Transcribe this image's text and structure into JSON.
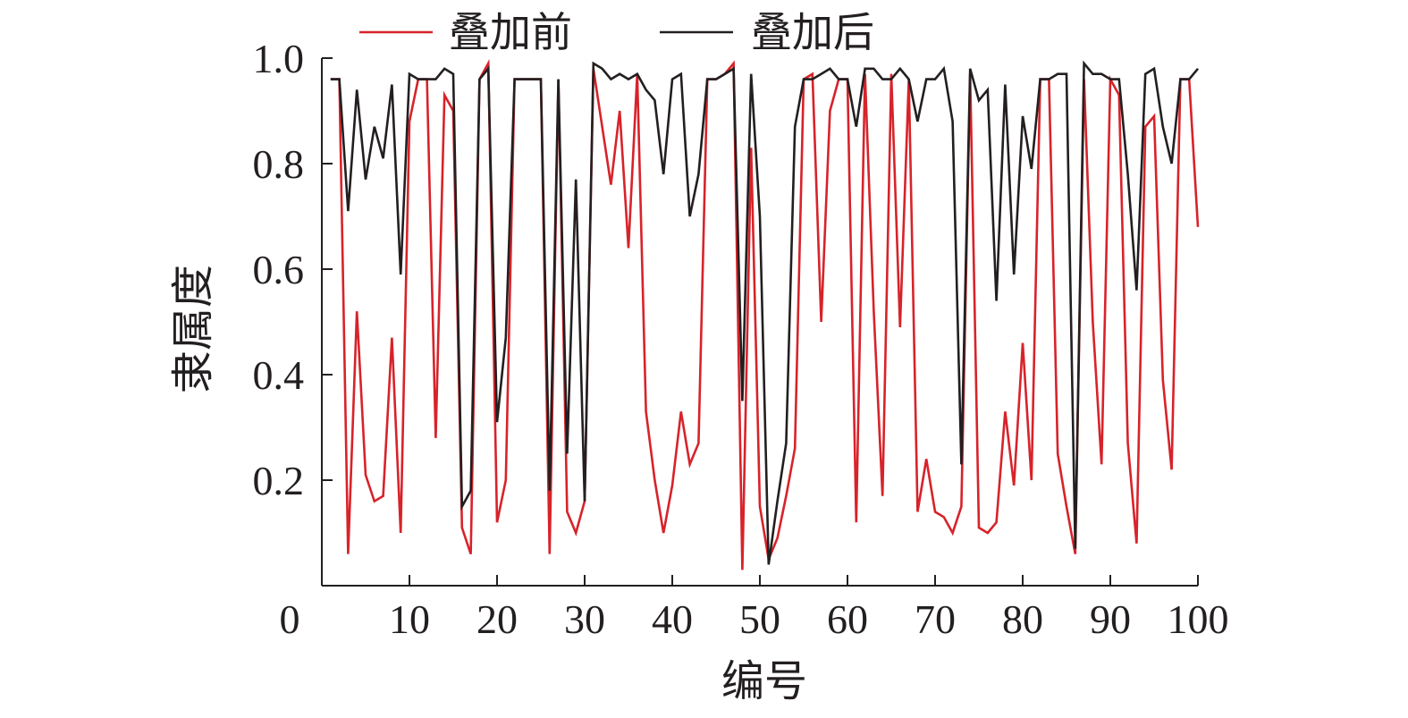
{
  "chart_data": {
    "type": "line",
    "title": "",
    "xlabel": "编号",
    "ylabel": "隶属度",
    "xlim": [
      0,
      100
    ],
    "ylim": [
      0,
      1.0
    ],
    "x_ticks": [
      {
        "value": 0,
        "label": "0"
      },
      {
        "value": 10,
        "label": "10"
      },
      {
        "value": 20,
        "label": "20"
      },
      {
        "value": 30,
        "label": "30"
      },
      {
        "value": 40,
        "label": "40"
      },
      {
        "value": 50,
        "label": "50"
      },
      {
        "value": 60,
        "label": "60"
      },
      {
        "value": 70,
        "label": "70"
      },
      {
        "value": 80,
        "label": "80"
      },
      {
        "value": 90,
        "label": "90"
      },
      {
        "value": 100,
        "label": "100"
      }
    ],
    "y_ticks": [
      {
        "value": 0.2,
        "label": "0.2"
      },
      {
        "value": 0.4,
        "label": "0.4"
      },
      {
        "value": 0.6,
        "label": "0.6"
      },
      {
        "value": 0.8,
        "label": "0.8"
      },
      {
        "value": 1.0,
        "label": "1.0"
      }
    ],
    "grid": false,
    "legend_position": "top",
    "x": [
      1,
      2,
      3,
      4,
      5,
      6,
      7,
      8,
      9,
      10,
      11,
      12,
      13,
      14,
      15,
      16,
      17,
      18,
      19,
      20,
      21,
      22,
      23,
      24,
      25,
      26,
      27,
      28,
      29,
      30,
      31,
      32,
      33,
      34,
      35,
      36,
      37,
      38,
      39,
      40,
      41,
      42,
      43,
      44,
      45,
      46,
      47,
      48,
      49,
      50,
      51,
      52,
      53,
      54,
      55,
      56,
      57,
      58,
      59,
      60,
      61,
      62,
      63,
      64,
      65,
      66,
      67,
      68,
      69,
      70,
      71,
      72,
      73,
      74,
      75,
      76,
      77,
      78,
      79,
      80,
      81,
      82,
      83,
      84,
      85,
      86,
      87,
      88,
      89,
      90,
      91,
      92,
      93,
      94,
      95,
      96,
      97,
      98,
      99,
      100
    ],
    "series": [
      {
        "name": "叠加前",
        "color": "#d7232a",
        "values": [
          0.96,
          0.96,
          0.06,
          0.52,
          0.21,
          0.16,
          0.17,
          0.47,
          0.1,
          0.88,
          0.96,
          0.96,
          0.28,
          0.93,
          0.9,
          0.11,
          0.06,
          0.96,
          0.99,
          0.12,
          0.2,
          0.96,
          0.96,
          0.96,
          0.96,
          0.06,
          0.96,
          0.14,
          0.1,
          0.16,
          0.98,
          0.87,
          0.76,
          0.9,
          0.64,
          0.97,
          0.33,
          0.2,
          0.1,
          0.19,
          0.33,
          0.23,
          0.27,
          0.96,
          0.96,
          0.97,
          0.99,
          0.03,
          0.83,
          0.15,
          0.05,
          0.09,
          0.17,
          0.26,
          0.96,
          0.97,
          0.5,
          0.9,
          0.96,
          0.96,
          0.12,
          0.97,
          0.52,
          0.17,
          0.97,
          0.49,
          0.96,
          0.14,
          0.24,
          0.14,
          0.13,
          0.1,
          0.15,
          0.97,
          0.11,
          0.1,
          0.12,
          0.33,
          0.19,
          0.46,
          0.2,
          0.96,
          0.96,
          0.25,
          0.15,
          0.06,
          0.96,
          0.5,
          0.23,
          0.96,
          0.93,
          0.27,
          0.08,
          0.87,
          0.89,
          0.39,
          0.22,
          0.96,
          0.96,
          0.68
        ]
      },
      {
        "name": "叠加后",
        "color": "#231f20",
        "values": [
          0.96,
          0.96,
          0.71,
          0.94,
          0.77,
          0.87,
          0.81,
          0.95,
          0.59,
          0.97,
          0.96,
          0.96,
          0.96,
          0.98,
          0.97,
          0.15,
          0.18,
          0.96,
          0.98,
          0.31,
          0.47,
          0.96,
          0.96,
          0.96,
          0.96,
          0.18,
          0.96,
          0.25,
          0.77,
          0.16,
          0.99,
          0.98,
          0.96,
          0.97,
          0.96,
          0.97,
          0.94,
          0.92,
          0.78,
          0.96,
          0.97,
          0.7,
          0.78,
          0.96,
          0.96,
          0.97,
          0.98,
          0.35,
          0.97,
          0.7,
          0.04,
          0.16,
          0.27,
          0.87,
          0.96,
          0.96,
          0.97,
          0.98,
          0.96,
          0.96,
          0.87,
          0.98,
          0.98,
          0.96,
          0.96,
          0.98,
          0.96,
          0.88,
          0.96,
          0.96,
          0.98,
          0.88,
          0.23,
          0.98,
          0.92,
          0.94,
          0.54,
          0.95,
          0.59,
          0.89,
          0.79,
          0.96,
          0.96,
          0.97,
          0.97,
          0.07,
          0.99,
          0.97,
          0.97,
          0.96,
          0.96,
          0.78,
          0.56,
          0.97,
          0.98,
          0.87,
          0.8,
          0.96,
          0.96,
          0.98
        ]
      }
    ]
  }
}
